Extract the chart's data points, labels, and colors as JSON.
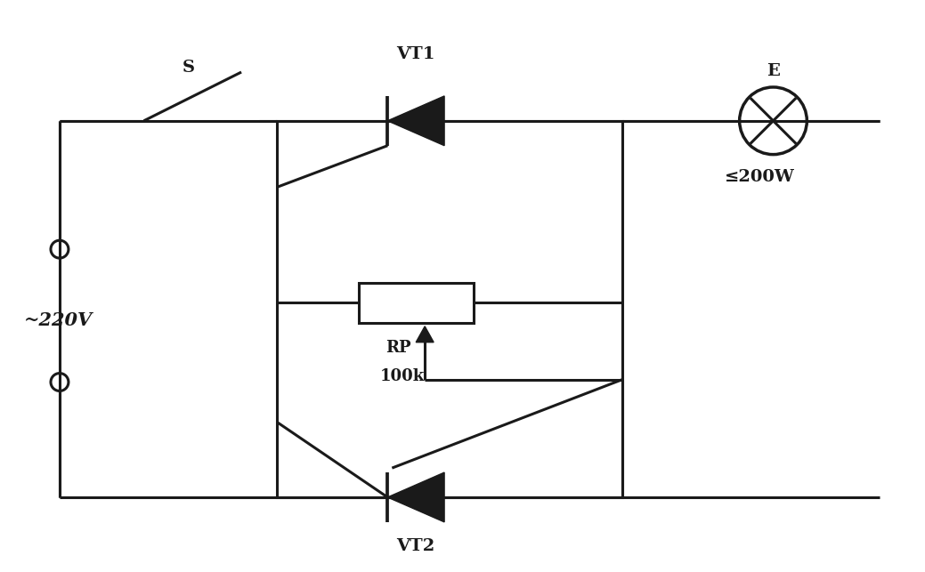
{
  "bg_color": "#ffffff",
  "line_color": "#1a1a1a",
  "line_width": 2.2,
  "fig_width": 10.39,
  "fig_height": 6.43,
  "vt1_label": "VT1",
  "vt2_label": "VT2",
  "rp_label_1": "RP",
  "rp_label_2": "100k",
  "s_label": "S",
  "e_label": "E",
  "power_label": "~220V",
  "lamp_label": "≤200W"
}
